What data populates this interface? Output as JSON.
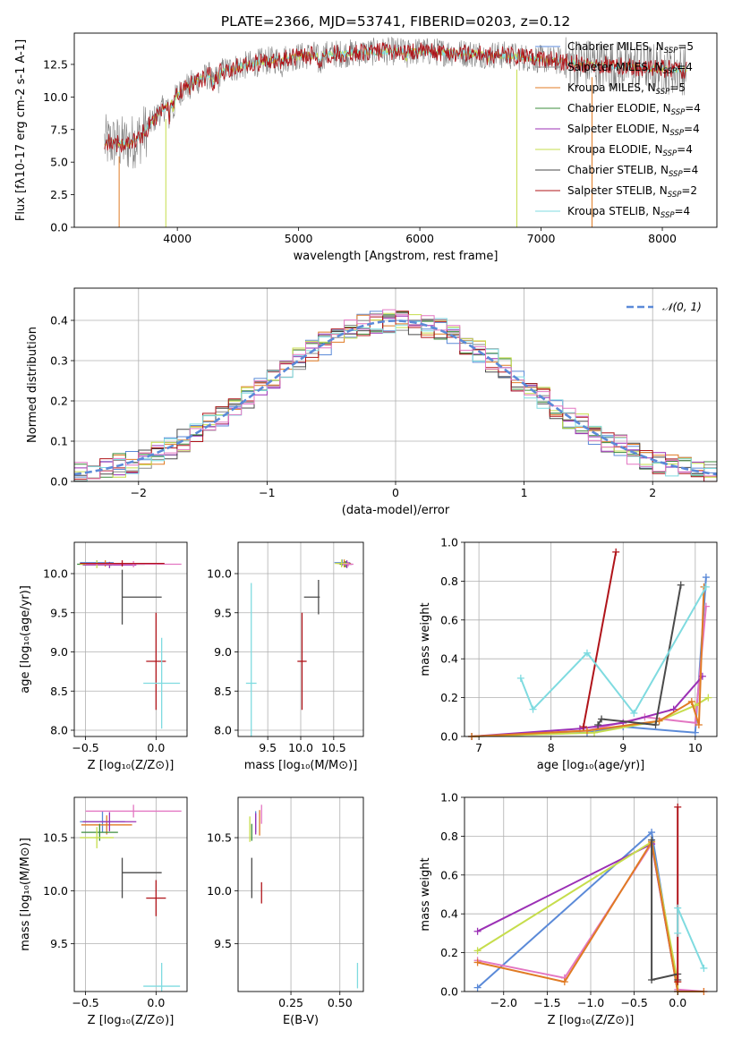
{
  "title": "PLATE=2366, MJD=53741, FIBERID=0203, z=0.12",
  "colors": {
    "Chabrier MILES": "#5b8ad8",
    "Salpeter MILES": "#888888",
    "Kroupa MILES": "#e07b24",
    "Chabrier ELODIE": "#3c8c3c",
    "Salpeter ELODIE": "#9b30b5",
    "Kroupa ELODIE": "#c6dd4c",
    "Chabrier STELIB": "#4a4a4a",
    "Salpeter STELIB": "#b0141a",
    "Kroupa STELIB": "#7fdbe0",
    "pink": "#e377c2",
    "normal_curve": "#5b8ad8"
  },
  "chart_data": [
    {
      "id": "spectrum",
      "type": "line",
      "title": "PLATE=2366, MJD=53741, FIBERID=0203, z=0.12",
      "xlabel": "wavelength [Angstrom, rest frame]",
      "ylabel": "Flux [f$_\\lambda$10$^{-17}$ erg cm$^{-2}$ s$^{-1}$ A$^{-1}$]",
      "xlim": [
        3150,
        8450
      ],
      "ylim": [
        0,
        14.9
      ],
      "xticks": [
        "4000",
        "5000",
        "6000",
        "7000",
        "8000"
      ],
      "yticks": [
        "0.0",
        "2.5",
        "5.0",
        "7.5",
        "10.0",
        "12.5"
      ],
      "ytick_values": [
        0,
        2.5,
        5,
        7.5,
        10,
        12.5
      ],
      "xtick_values": [
        4000,
        5000,
        6000,
        7000,
        8000
      ],
      "legend": {
        "placement": "right",
        "entries": [
          {
            "label": "Chabrier MILES, N",
            "sub": "SSP",
            "tail": "=5",
            "color_key": "Chabrier MILES"
          },
          {
            "label": "Salpeter MILES, N",
            "sub": "SSP",
            "tail": "=4",
            "color_key": "Salpeter MILES"
          },
          {
            "label": "Kroupa MILES, N",
            "sub": "SSP",
            "tail": "=5",
            "color_key": "Kroupa MILES"
          },
          {
            "label": "Chabrier ELODIE, N",
            "sub": "SSP",
            "tail": "=4",
            "color_key": "Chabrier ELODIE"
          },
          {
            "label": "Salpeter ELODIE, N",
            "sub": "SSP",
            "tail": "=4",
            "color_key": "Salpeter ELODIE"
          },
          {
            "label": "Kroupa ELODIE, N",
            "sub": "SSP",
            "tail": "=4",
            "color_key": "Kroupa ELODIE"
          },
          {
            "label": "Chabrier STELIB, N",
            "sub": "SSP",
            "tail": "=4",
            "color_key": "Chabrier STELIB"
          },
          {
            "label": "Salpeter STELIB, N",
            "sub": "SSP",
            "tail": "=2",
            "color_key": "Salpeter STELIB"
          },
          {
            "label": "Kroupa STELIB, N",
            "sub": "SSP",
            "tail": "=4",
            "color_key": "Kroupa STELIB"
          }
        ]
      },
      "continuum": {
        "x": [
          3400,
          3600,
          3700,
          3850,
          4000,
          4100,
          4300,
          4500,
          4700,
          4900,
          5100,
          5300,
          5500,
          5700,
          6000,
          6300,
          6500,
          6700,
          7000,
          7300,
          7600,
          7900,
          8200
        ],
        "y": [
          6.5,
          6.4,
          7.0,
          8.8,
          10.2,
          11.0,
          11.8,
          12.3,
          12.7,
          13.0,
          13.2,
          13.3,
          13.4,
          13.5,
          13.5,
          13.4,
          13.3,
          13.2,
          12.9,
          12.6,
          12.4,
          12.2,
          12.1
        ]
      },
      "data_line_color": "#808080",
      "grid": false
    },
    {
      "id": "residuals",
      "type": "histogram",
      "xlabel": "(data-model)/error",
      "ylabel": "Normed distribution",
      "xlim": [
        -2.5,
        2.5
      ],
      "ylim": [
        0,
        0.48
      ],
      "xticks": [
        "−2",
        "−1",
        "0",
        "1",
        "2"
      ],
      "xtick_values": [
        -2,
        -1,
        0,
        1,
        2
      ],
      "yticks": [
        "0.0",
        "0.1",
        "0.2",
        "0.3",
        "0.4"
      ],
      "ytick_values": [
        0,
        0.1,
        0.2,
        0.3,
        0.4
      ],
      "bin_width": 0.1,
      "bin_start": -2.5,
      "legend": {
        "placement": "top-right",
        "label": "𝒩(0, 1)"
      },
      "grid": true
    },
    {
      "id": "age-vs-Z",
      "type": "errorbar",
      "xlabel": "Z [log₁₀(Z/Z⊙)]",
      "ylabel": "age  [log₁₀(age/yr)]",
      "xlim": [
        -0.58,
        0.22
      ],
      "ylim": [
        7.92,
        10.4
      ],
      "xticks": [
        "−0.5",
        "0.0"
      ],
      "xtick_values": [
        -0.5,
        0.0
      ],
      "yticks": [
        "8.0",
        "8.5",
        "9.0",
        "9.5",
        "10.0"
      ],
      "ytick_values": [
        8.0,
        8.5,
        9.0,
        9.5,
        10.0
      ],
      "grid": true,
      "points": [
        {
          "x": -0.42,
          "xerr": 0.12,
          "y": 10.14,
          "yerr": 0.03,
          "color_key": "Chabrier MILES"
        },
        {
          "x": -0.36,
          "xerr": 0.16,
          "y": 10.13,
          "yerr": 0.04,
          "color_key": "Kroupa MILES"
        },
        {
          "x": -0.32,
          "xerr": 0.24,
          "y": 10.12,
          "yerr": 0.02,
          "color_key": "Chabrier ELODIE"
        },
        {
          "x": -0.33,
          "xerr": 0.19,
          "y": 10.11,
          "yerr": 0.04,
          "color_key": "Salpeter ELODIE"
        },
        {
          "x": -0.42,
          "xerr": 0.12,
          "y": 10.12,
          "yerr": 0.05,
          "color_key": "Kroupa ELODIE"
        },
        {
          "x": -0.16,
          "xerr": 0.34,
          "y": 10.12,
          "yerr": 0.04,
          "color_key": "pink"
        },
        {
          "x": -0.24,
          "xerr": 0.3,
          "y": 10.13,
          "yerr": 0.04,
          "color_key": "Salpeter STELIB"
        },
        {
          "x": -0.24,
          "xerr": 0.0,
          "y": 9.7,
          "yerr": 0.35,
          "color_key": "Chabrier STELIB"
        },
        {
          "x": -0.1,
          "xerr": 0.14,
          "y": 9.7,
          "yerr": 0.0,
          "color_key": "Chabrier STELIB"
        },
        {
          "x": 0.0,
          "xerr": 0.07,
          "y": 8.88,
          "yerr": 0.62,
          "color_key": "Salpeter STELIB"
        },
        {
          "x": 0.04,
          "xerr": 0.13,
          "y": 8.6,
          "yerr": 0.58,
          "color_key": "Kroupa STELIB"
        }
      ]
    },
    {
      "id": "age-vs-mass",
      "type": "errorbar",
      "xlabel": "mass [log₁₀(M/M⊙)]",
      "xlim": [
        9.05,
        10.95
      ],
      "ylim": [
        7.92,
        10.4
      ],
      "xticks": [
        "9.5",
        "10.0",
        "10.5"
      ],
      "xtick_values": [
        9.5,
        10.0,
        10.5
      ],
      "yticks": [
        "8.0",
        "8.5",
        "9.0",
        "9.5",
        "10.0"
      ],
      "ytick_values": [
        8.0,
        8.5,
        9.0,
        9.5,
        10.0
      ],
      "grid": true,
      "points": [
        {
          "x": 10.63,
          "xerr": 0.12,
          "y": 10.14,
          "yerr": 0.04,
          "color_key": "Chabrier MILES"
        },
        {
          "x": 10.66,
          "xerr": 0.1,
          "y": 10.13,
          "yerr": 0.05,
          "color_key": "Kroupa MILES"
        },
        {
          "x": 10.68,
          "xerr": 0.09,
          "y": 10.12,
          "yerr": 0.04,
          "color_key": "Chabrier ELODIE"
        },
        {
          "x": 10.7,
          "xerr": 0.08,
          "y": 10.12,
          "yerr": 0.05,
          "color_key": "Salpeter ELODIE"
        },
        {
          "x": 10.62,
          "xerr": 0.1,
          "y": 10.13,
          "yerr": 0.05,
          "color_key": "Kroupa ELODIE"
        },
        {
          "x": 10.72,
          "xerr": 0.08,
          "y": 10.12,
          "yerr": 0.03,
          "color_key": "pink"
        },
        {
          "x": 10.17,
          "xerr": 0.12,
          "y": 9.7,
          "yerr": 0.0,
          "color_key": "Chabrier STELIB"
        },
        {
          "x": 10.27,
          "xerr": 0.0,
          "y": 9.7,
          "yerr": 0.22,
          "color_key": "Chabrier STELIB"
        },
        {
          "x": 10.02,
          "xerr": 0.07,
          "y": 8.88,
          "yerr": 0.62,
          "color_key": "Salpeter STELIB"
        },
        {
          "x": 9.25,
          "xerr": 0.08,
          "y": 8.6,
          "yerr": 1.28,
          "color_key": "Kroupa STELIB"
        }
      ]
    },
    {
      "id": "massweight-vs-age",
      "type": "line",
      "xlabel": "age  [log₁₀(age/yr)]",
      "ylabel": "mass weight",
      "xlim": [
        6.8,
        10.3
      ],
      "ylim": [
        0,
        1.0
      ],
      "xticks": [
        "7",
        "8",
        "9",
        "10"
      ],
      "xtick_values": [
        7,
        8,
        9,
        10
      ],
      "yticks": [
        "0.0",
        "0.2",
        "0.4",
        "0.6",
        "0.8",
        "1.0"
      ],
      "ytick_values": [
        0,
        0.2,
        0.4,
        0.6,
        0.8,
        1.0
      ],
      "grid": true,
      "series": [
        {
          "color_key": "Chabrier MILES",
          "x": [
            6.9,
            8.5,
            9.0,
            10.0,
            10.15
          ],
          "y": [
            0.0,
            0.02,
            0.05,
            0.02,
            0.82
          ]
        },
        {
          "color_key": "pink",
          "x": [
            6.9,
            8.5,
            9.3,
            10.0,
            10.15
          ],
          "y": [
            0.0,
            0.03,
            0.1,
            0.07,
            0.67
          ]
        },
        {
          "color_key": "Salpeter ELODIE",
          "x": [
            6.9,
            8.4,
            9.0,
            9.7,
            10.1
          ],
          "y": [
            0.0,
            0.04,
            0.07,
            0.14,
            0.31
          ]
        },
        {
          "color_key": "Kroupa ELODIE",
          "x": [
            6.9,
            8.6,
            9.5,
            10.0,
            10.18
          ],
          "y": [
            0.0,
            0.02,
            0.08,
            0.16,
            0.2
          ]
        },
        {
          "color_key": "Kroupa MILES",
          "x": [
            6.9,
            8.5,
            9.5,
            9.95,
            10.05,
            10.12
          ],
          "y": [
            0.0,
            0.03,
            0.08,
            0.18,
            0.06,
            0.77
          ]
        },
        {
          "color_key": "Chabrier STELIB",
          "x": [
            8.65,
            8.7,
            9.45,
            9.8
          ],
          "y": [
            0.06,
            0.09,
            0.06,
            0.78
          ]
        },
        {
          "color_key": "Salpeter STELIB",
          "x": [
            8.45,
            8.9
          ],
          "y": [
            0.05,
            0.95
          ]
        },
        {
          "color_key": "Kroupa STELIB",
          "x": [
            7.58,
            7.75,
            8.5,
            9.15,
            10.15
          ],
          "y": [
            0.3,
            0.14,
            0.43,
            0.12,
            0.77
          ]
        }
      ]
    },
    {
      "id": "mass-vs-Z",
      "type": "errorbar",
      "xlabel": "Z [log₁₀(Z/Z⊙)]",
      "ylabel": "mass [log₁₀(M/M⊙)]",
      "xlim": [
        -0.58,
        0.22
      ],
      "ylim": [
        9.05,
        10.88
      ],
      "xticks": [
        "−0.5",
        "0.0"
      ],
      "xtick_values": [
        -0.5,
        0.0
      ],
      "yticks": [
        "9.5",
        "10.0",
        "10.5"
      ],
      "ytick_values": [
        9.5,
        10.0,
        10.5
      ],
      "grid": true,
      "points": [
        {
          "x": -0.38,
          "xerr": 0.16,
          "y": 10.65,
          "yerr": 0.1,
          "color_key": "Chabrier MILES"
        },
        {
          "x": -0.35,
          "xerr": 0.18,
          "y": 10.62,
          "yerr": 0.09,
          "color_key": "Kroupa MILES"
        },
        {
          "x": -0.4,
          "xerr": 0.13,
          "y": 10.55,
          "yerr": 0.08,
          "color_key": "Chabrier ELODIE"
        },
        {
          "x": -0.33,
          "xerr": 0.19,
          "y": 10.65,
          "yerr": 0.09,
          "color_key": "Salpeter ELODIE"
        },
        {
          "x": -0.42,
          "xerr": 0.12,
          "y": 10.5,
          "yerr": 0.1,
          "color_key": "Kroupa ELODIE"
        },
        {
          "x": -0.16,
          "xerr": 0.34,
          "y": 10.75,
          "yerr": 0.06,
          "color_key": "pink"
        },
        {
          "x": -0.24,
          "xerr": 0.0,
          "y": 10.12,
          "yerr": 0.19,
          "color_key": "Chabrier STELIB"
        },
        {
          "x": -0.1,
          "xerr": 0.14,
          "y": 10.17,
          "yerr": 0.0,
          "color_key": "Chabrier STELIB"
        },
        {
          "x": 0.0,
          "xerr": 0.07,
          "y": 9.93,
          "yerr": 0.17,
          "color_key": "Salpeter STELIB"
        },
        {
          "x": 0.04,
          "xerr": 0.13,
          "y": 9.1,
          "yerr": 0.22,
          "color_key": "Kroupa STELIB"
        }
      ]
    },
    {
      "id": "mass-vs-ebv",
      "type": "errorbar",
      "xlabel": "E(B-V)",
      "xlim": [
        -0.02,
        0.62
      ],
      "ylim": [
        9.05,
        10.88
      ],
      "xticks": [
        "0.25",
        "0.50"
      ],
      "xtick_values": [
        0.25,
        0.5
      ],
      "yticks": [
        "9.5",
        "10.0",
        "10.5"
      ],
      "ytick_values": [
        9.5,
        10.0,
        10.5
      ],
      "grid": true,
      "points": [
        {
          "x": 0.07,
          "xerr": 0.0,
          "y": 10.65,
          "yerr": 0.1,
          "color_key": "Chabrier MILES"
        },
        {
          "x": 0.09,
          "xerr": 0.0,
          "y": 10.64,
          "yerr": 0.12,
          "color_key": "Kroupa MILES"
        },
        {
          "x": 0.05,
          "xerr": 0.0,
          "y": 10.55,
          "yerr": 0.08,
          "color_key": "Chabrier ELODIE"
        },
        {
          "x": 0.07,
          "xerr": 0.0,
          "y": 10.63,
          "yerr": 0.1,
          "color_key": "Salpeter ELODIE"
        },
        {
          "x": 0.04,
          "xerr": 0.0,
          "y": 10.58,
          "yerr": 0.12,
          "color_key": "Kroupa ELODIE"
        },
        {
          "x": 0.1,
          "xerr": 0.0,
          "y": 10.72,
          "yerr": 0.09,
          "color_key": "pink"
        },
        {
          "x": 0.05,
          "xerr": 0.0,
          "y": 10.12,
          "yerr": 0.19,
          "color_key": "Chabrier STELIB"
        },
        {
          "x": 0.1,
          "xerr": 0.0,
          "y": 9.98,
          "yerr": 0.1,
          "color_key": "Salpeter STELIB"
        },
        {
          "x": 0.59,
          "xerr": 0.0,
          "y": 9.2,
          "yerr": 0.12,
          "color_key": "Kroupa STELIB"
        }
      ]
    },
    {
      "id": "massweight-vs-Z",
      "type": "line",
      "xlabel": "Z [log₁₀(Z/Z⊙)]",
      "ylabel": "mass weight",
      "xlim": [
        -2.45,
        0.45
      ],
      "ylim": [
        0,
        1.0
      ],
      "xticks": [
        "−2.0",
        "−1.5",
        "−1.0",
        "−0.5",
        "0.0"
      ],
      "xtick_values": [
        -2.0,
        -1.5,
        -1.0,
        -0.5,
        0.0
      ],
      "yticks": [
        "0.0",
        "0.2",
        "0.4",
        "0.6",
        "0.8",
        "1.0"
      ],
      "ytick_values": [
        0,
        0.2,
        0.4,
        0.6,
        0.8,
        1.0
      ],
      "grid": true,
      "series": [
        {
          "color_key": "Chabrier MILES",
          "x": [
            -2.3,
            -0.3,
            0.0,
            0.0
          ],
          "y": [
            0.02,
            0.82,
            0.0,
            0.0
          ]
        },
        {
          "color_key": "pink",
          "x": [
            -2.3,
            -1.3,
            -0.3,
            0.0,
            0.3
          ],
          "y": [
            0.16,
            0.07,
            0.76,
            0.01,
            0.0
          ]
        },
        {
          "color_key": "Salpeter ELODIE",
          "x": [
            -2.3,
            -0.3,
            0.0
          ],
          "y": [
            0.31,
            0.76,
            0.0
          ]
        },
        {
          "color_key": "Kroupa ELODIE",
          "x": [
            -2.3,
            -0.3,
            0.0,
            0.0
          ],
          "y": [
            0.21,
            0.77,
            0.05,
            0.0
          ]
        },
        {
          "color_key": "Kroupa MILES",
          "x": [
            -2.3,
            -1.3,
            -0.3,
            0.0,
            0.3
          ],
          "y": [
            0.15,
            0.05,
            0.77,
            0.0,
            0.0
          ]
        },
        {
          "color_key": "Chabrier STELIB",
          "x": [
            -0.3,
            -0.3,
            0.0,
            0.0
          ],
          "y": [
            0.78,
            0.06,
            0.09,
            0.06
          ]
        },
        {
          "color_key": "Salpeter STELIB",
          "x": [
            0.0,
            0.0
          ],
          "y": [
            0.05,
            0.95
          ]
        },
        {
          "color_key": "Kroupa STELIB",
          "x": [
            0.0,
            0.0,
            0.3
          ],
          "y": [
            0.3,
            0.43,
            0.12
          ]
        }
      ]
    }
  ]
}
